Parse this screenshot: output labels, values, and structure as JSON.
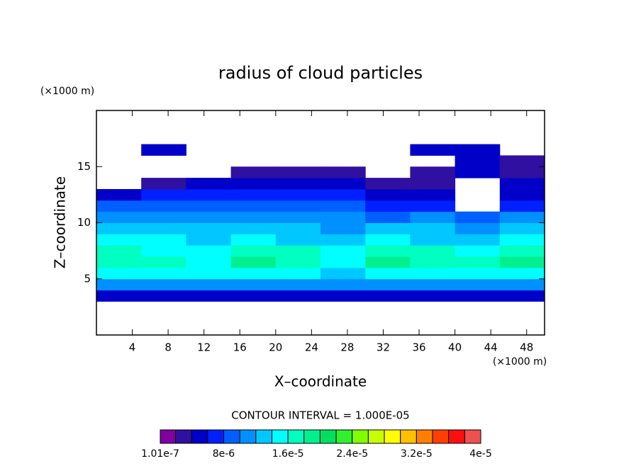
{
  "chart_data": {
    "type": "contour",
    "title": "radius of cloud particles",
    "xlabel": "X–coordinate",
    "ylabel": "Z–coordinate",
    "x_unit": "(×1000 m)",
    "y_unit": "(×1000 m)",
    "annotation": "CONTOUR INTERVAL = 1.000E-05",
    "xlim": [
      0,
      50
    ],
    "ylim": [
      0,
      20
    ],
    "xticks": [
      4,
      8,
      12,
      16,
      20,
      24,
      28,
      32,
      36,
      40,
      44,
      48
    ],
    "yticks": [
      5,
      10,
      15
    ],
    "x": [
      2.5,
      7.5,
      12.5,
      17.5,
      22.5,
      27.5,
      32.5,
      37.5,
      42.5,
      47.5
    ],
    "z": [
      3.5,
      4.5,
      5.5,
      6.5,
      7.5,
      8.5,
      9.5,
      10.5,
      11.5,
      12.5,
      13.5,
      14.5,
      15.5,
      16.5
    ],
    "values": [
      [
        4e-06,
        4e-06,
        4e-06,
        4e-06,
        4e-06,
        4e-06,
        4e-06,
        4e-06,
        4e-06,
        4e-06
      ],
      [
        1.1e-05,
        1.1e-05,
        1.1e-05,
        1.1e-05,
        1.1e-05,
        1.1e-05,
        1.1e-05,
        1.1e-05,
        1.1e-05,
        1.1e-05
      ],
      [
        1.5e-05,
        1.5e-05,
        1.4e-05,
        1.5e-05,
        1.5e-05,
        1.3e-05,
        1.5e-05,
        1.5e-05,
        1.4e-05,
        1.5e-05
      ],
      [
        1.7e-05,
        1.6e-05,
        1.5e-05,
        1.8e-05,
        1.7e-05,
        1.5e-05,
        1.8e-05,
        1.7e-05,
        1.6e-05,
        1.8e-05
      ],
      [
        1.6e-05,
        1.5e-05,
        1.5e-05,
        1.7e-05,
        1.6e-05,
        1.4e-05,
        1.7e-05,
        1.6e-05,
        1.5e-05,
        1.7e-05
      ],
      [
        1.4e-05,
        1.4e-05,
        1.3e-05,
        1.4e-05,
        1.3e-05,
        1.3e-05,
        1.4e-05,
        1.3e-05,
        1.3e-05,
        1.4e-05
      ],
      [
        1.3e-05,
        1.2e-05,
        1.2e-05,
        1.2e-05,
        1.2e-05,
        1.1e-05,
        1.2e-05,
        1.2e-05,
        1.1e-05,
        1.2e-05
      ],
      [
        1e-05,
        1.1e-05,
        1e-05,
        1e-05,
        1e-05,
        1e-05,
        9e-06,
        1e-05,
        8e-06,
        1e-05
      ],
      [
        8e-06,
        8e-06,
        9e-06,
        8e-06,
        8e-06,
        8e-06,
        7e-06,
        6e-06,
        null,
        7e-06
      ],
      [
        5e-06,
        6e-06,
        6e-06,
        6e-06,
        6e-06,
        6e-06,
        5e-06,
        4e-06,
        null,
        5e-06
      ],
      [
        null,
        3e-06,
        4e-06,
        4e-06,
        5e-06,
        5e-06,
        3e-06,
        3e-06,
        null,
        4e-06
      ],
      [
        null,
        null,
        null,
        2e-06,
        3e-06,
        3e-06,
        null,
        3e-06,
        4e-06,
        3e-06
      ],
      [
        null,
        null,
        null,
        null,
        null,
        null,
        null,
        null,
        4e-06,
        3e-06
      ],
      [
        null,
        4e-06,
        null,
        null,
        null,
        null,
        null,
        4e-06,
        5e-06,
        null
      ]
    ],
    "colorbar": {
      "levels": [
        1.01e-07,
        2e-06,
        4e-06,
        6e-06,
        8e-06,
        1e-05,
        1.2e-05,
        1.4e-05,
        1.6e-05,
        1.8e-05,
        2e-05,
        2.2e-05,
        2.4e-05,
        2.6e-05,
        2.8e-05,
        3e-05,
        3.2e-05,
        3.4e-05,
        3.6e-05,
        3.8e-05,
        4e-05
      ],
      "colors": [
        "#8000a0",
        "#3010a0",
        "#0000c8",
        "#0020ff",
        "#0060ff",
        "#0090ff",
        "#00c8ff",
        "#00ffff",
        "#00ffc0",
        "#00f090",
        "#00e060",
        "#30f030",
        "#80ff00",
        "#c8ff00",
        "#ffff00",
        "#ffc000",
        "#ff8000",
        "#ff4000",
        "#ff1010",
        "#f05050"
      ],
      "ticks": [
        {
          "value": 1.01e-07,
          "label": "1.01e-7"
        },
        {
          "value": 8e-06,
          "label": "8e-6"
        },
        {
          "value": 1.6e-05,
          "label": "1.6e-5"
        },
        {
          "value": 2.4e-05,
          "label": "2.4e-5"
        },
        {
          "value": 3.2e-05,
          "label": "3.2e-5"
        },
        {
          "value": 4e-05,
          "label": "4e-5"
        }
      ]
    }
  }
}
